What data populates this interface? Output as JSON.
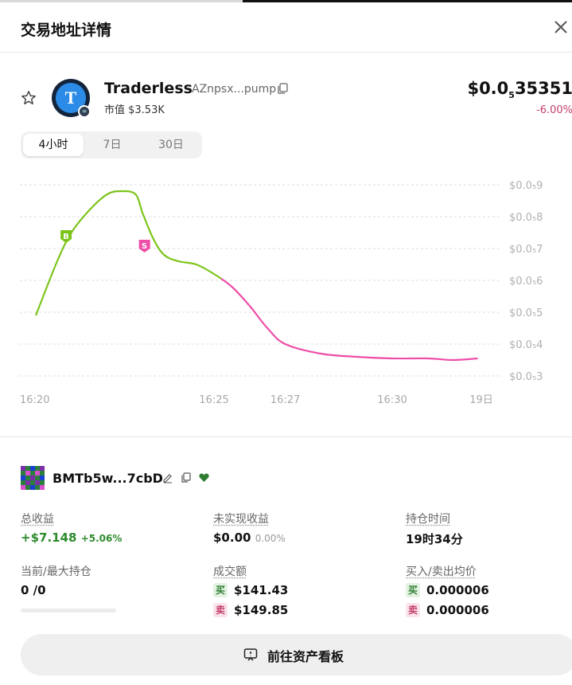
{
  "header": {
    "title": "交易地址详情"
  },
  "token": {
    "name": "Traderless",
    "address": "AZnpsx...pump",
    "market_cap": "市值 $3.53K",
    "logo_letter": "T",
    "price_prefix": "$0.0",
    "price_sub": "5",
    "price_rest": "35351",
    "change": "-6.00%"
  },
  "tabs": [
    {
      "label": "4小时",
      "active": true
    },
    {
      "label": "7日",
      "active": false
    },
    {
      "label": "30日",
      "active": false
    }
  ],
  "chart_data": {
    "type": "line",
    "y_tick_labels": [
      "$0.0₅9",
      "$0.0₅8",
      "$0.0₅7",
      "$0.0₅6",
      "$0.0₅5",
      "$0.0₅4",
      "$0.0₅3"
    ],
    "y_ticks": [
      9,
      8,
      7,
      6,
      5,
      4,
      3
    ],
    "ylim": [
      3,
      9
    ],
    "x_tick_labels": [
      "16:20",
      "16:25",
      "16:27",
      "16:30",
      "19日"
    ],
    "x_ticks": [
      0,
      5,
      7,
      10,
      12.5
    ],
    "xlim": [
      0,
      12.5
    ],
    "grid": true,
    "series": [
      {
        "color_up": "#7cc41a",
        "color_down": "#ee4ea8",
        "x": [
          0,
          0.6,
          1.0,
          1.5,
          2.0,
          2.4,
          2.8,
          3.0,
          3.3,
          3.6,
          4.0,
          4.5,
          5.0,
          5.5,
          6.0,
          6.5,
          7.0,
          8.0,
          9.0,
          10.0,
          11.0,
          11.7,
          12.4
        ],
        "values": [
          4.9,
          6.6,
          7.5,
          8.2,
          8.7,
          8.8,
          8.7,
          8.1,
          7.3,
          6.8,
          6.6,
          6.5,
          6.2,
          5.8,
          5.2,
          4.5,
          4.0,
          3.7,
          3.6,
          3.55,
          3.55,
          3.5,
          3.55
        ]
      }
    ],
    "markers": [
      {
        "label": "B",
        "x": 0.85,
        "y": 7.4,
        "color": "#7cc41a"
      },
      {
        "label": "S",
        "x": 3.05,
        "y": 7.1,
        "color": "#ee4ea8"
      }
    ],
    "color_switch_x": 5.2
  },
  "wallet": {
    "name": "BMTb5w...7cbD"
  },
  "stats": {
    "total_profit_label": "总收益",
    "total_profit": "+$7.148",
    "total_profit_pct": "+5.06%",
    "unrealized_label": "未实现收益",
    "unrealized": "$0.00",
    "unrealized_pct": "0.00%",
    "hold_time_label": "持仓时间",
    "hold_time": "19时34分",
    "position_label": "当前/最大持仓",
    "position": "0 /0",
    "position_fraction": 0,
    "volume_label": "成交额",
    "buy_tag": "买",
    "sell_tag": "卖",
    "buy_volume": "$141.43",
    "sell_volume": "$149.85",
    "avg_price_label": "买入/卖出均价",
    "buy_avg": "0.000006",
    "sell_avg": "0.000006"
  },
  "footer": {
    "button_label": "前往资产看板"
  },
  "colors": {
    "green": "#2e8b2e",
    "pink": "#c4406a",
    "accent_line_up": "#7cc41a",
    "accent_line_down": "#ee4ea8"
  }
}
